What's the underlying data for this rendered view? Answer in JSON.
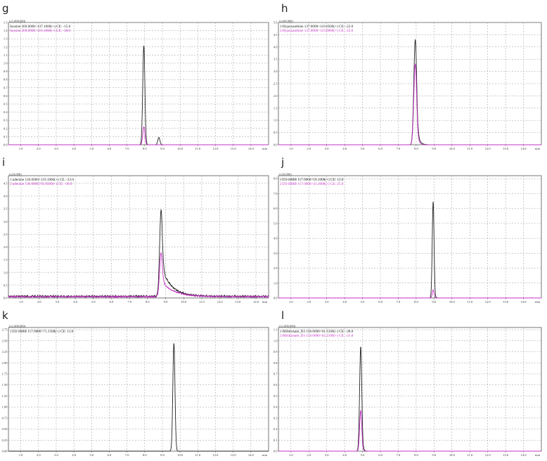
{
  "chart_data": [
    {
      "panel": "g",
      "type": "line",
      "multiplier": "(x1,000,000)",
      "legend": [
        {
          "label": "Inosine 269.0000>137.1000(+) CE: -15.0",
          "color": "#222222"
        },
        {
          "label": "Inosine 269.0000>110.1000(+) CE: -38.0",
          "color": "#c530c5"
        }
      ],
      "yticks": [
        "0.0",
        "0.1",
        "0.2",
        "0.3",
        "0.4",
        "0.5",
        "0.6",
        "0.7",
        "0.8",
        "0.9",
        "1.0",
        "1.1",
        "1.2",
        "1.3",
        "1.4",
        "1.5"
      ],
      "ylim": [
        0,
        1.5
      ],
      "xticks": [
        "1.0",
        "2.0",
        "3.0",
        "4.0",
        "5.0",
        "6.0",
        "7.0",
        "8.0",
        "9.0",
        "10.0",
        "11.0",
        "12.0",
        "13.0",
        "14.0"
      ],
      "xlim": [
        0.3,
        15.0
      ],
      "xunit": "min",
      "series": [
        {
          "color": "#222222",
          "peaks": [
            {
              "rt": 7.95,
              "h": 1.22,
              "w": 0.06,
              "tail": 0.02
            },
            {
              "rt": 8.8,
              "h": 0.09,
              "w": 0.06,
              "tail": 0.02
            }
          ]
        },
        {
          "color": "#c530c5",
          "peaks": [
            {
              "rt": 7.95,
              "h": 0.22,
              "w": 0.06,
              "tail": 0.02
            }
          ]
        }
      ]
    },
    {
      "panel": "h",
      "type": "line",
      "multiplier": "(x100,000)",
      "legend": [
        {
          "label": "1:Hypoxanthine 137.0000>110.0500(+) CE: -22.0",
          "color": "#222222"
        },
        {
          "label": "2:Hypoxanthine 137.0000>119.0000(+) CE: -22.0",
          "color": "#c530c5"
        }
      ],
      "yticks": [
        "0.0",
        "0.5",
        "1.0",
        "1.5",
        "2.0",
        "2.5",
        "3.0",
        "3.5",
        "4.0",
        "4.5",
        "5.0"
      ],
      "ylim": [
        0,
        5.0
      ],
      "xticks": [
        "1.0",
        "2.0",
        "3.0",
        "4.0",
        "5.0",
        "6.0",
        "7.0",
        "8.0",
        "9.0",
        "10.0",
        "11.0",
        "12.0",
        "13.0",
        "14.0"
      ],
      "xlim": [
        0.3,
        15.0
      ],
      "xunit": "min",
      "series": [
        {
          "color": "#222222",
          "peaks": [
            {
              "rt": 7.95,
              "h": 4.3,
              "w": 0.08,
              "tail": 0.12
            }
          ]
        },
        {
          "color": "#c530c5",
          "peaks": [
            {
              "rt": 7.95,
              "h": 3.3,
              "w": 0.08,
              "tail": 0.1
            }
          ]
        }
      ]
    },
    {
      "panel": "i",
      "type": "line",
      "multiplier": "(x10,000)",
      "legend": [
        {
          "label": "1:adenine 136.0000>119.1000(+) CE: -23.0",
          "color": "#222222"
        },
        {
          "label": "2:adenine 136.0000>92.0500(+) CE: -30.0",
          "color": "#c530c5"
        }
      ],
      "yticks": [
        "0.0",
        "0.5",
        "1.0",
        "1.5",
        "2.0",
        "2.5",
        "3.0",
        "3.5",
        "4.0",
        "4.5"
      ],
      "ylim": [
        0,
        4.8
      ],
      "xticks": [
        "1.0",
        "2.0",
        "3.0",
        "4.0",
        "5.0",
        "6.0",
        "7.0",
        "8.0",
        "9.0",
        "10.0",
        "11.0",
        "12.0",
        "13.0",
        "14.0"
      ],
      "xlim": [
        0.3,
        14.7
      ],
      "xunit": "min",
      "series": [
        {
          "color": "#222222",
          "noise": 0.09,
          "peaks": [
            {
              "rt": 8.75,
              "h": 3.4,
              "w": 0.08,
              "tail": 0.55
            }
          ]
        },
        {
          "color": "#c530c5",
          "noise": 0.07,
          "peaks": [
            {
              "rt": 8.75,
              "h": 1.75,
              "w": 0.08,
              "tail": 0.7
            }
          ]
        }
      ]
    },
    {
      "panel": "j",
      "type": "line",
      "multiplier": "(x10,000)",
      "legend": [
        {
          "label": "1:D3-HMB 117.0000>59.1000(+) CE: 12.0",
          "color": "#222222"
        },
        {
          "label": "2:D3-HMB 117.0000>41.2000(+) CE: 25.0",
          "color": "#c530c5"
        }
      ],
      "yticks": [
        "0.0",
        "1.0",
        "2.0",
        "3.0",
        "4.0",
        "5.0",
        "6.0",
        "7.0",
        "8.0"
      ],
      "ylim": [
        0,
        8.2
      ],
      "xticks": [
        "1.0",
        "2.0",
        "3.0",
        "4.0",
        "5.0",
        "6.0",
        "7.0",
        "8.0",
        "9.0",
        "10.0",
        "11.0",
        "12.0",
        "13.0",
        "14.0"
      ],
      "xlim": [
        0.3,
        15.0
      ],
      "xunit": "min",
      "series": [
        {
          "color": "#222222",
          "peaks": [
            {
              "rt": 8.95,
              "h": 6.5,
              "w": 0.05,
              "tail": 0.04
            }
          ]
        },
        {
          "color": "#c530c5",
          "peaks": [
            {
              "rt": 8.95,
              "h": 0.55,
              "w": 0.05,
              "tail": 0.04
            }
          ]
        }
      ]
    },
    {
      "panel": "k",
      "type": "line",
      "multiplier": "(x1,000,000)",
      "legend": [
        {
          "label": "1:D2-HMB 117.0000>71.1500(+) CE: 13.0",
          "color": "#222222"
        }
      ],
      "yticks": [
        "0.00",
        "0.25",
        "0.50",
        "0.75",
        "1.00",
        "1.25",
        "1.50",
        "1.75",
        "2.00",
        "2.25",
        "2.50",
        "2.75"
      ],
      "ylim": [
        0,
        2.8
      ],
      "xticks": [
        "1.0",
        "2.0",
        "3.0",
        "4.0",
        "5.0",
        "6.0",
        "7.0",
        "8.0",
        "9.0",
        "10.0",
        "11.0",
        "12.0",
        "13.0",
        "14.0"
      ],
      "xlim": [
        0.3,
        15.0
      ],
      "xunit": "min",
      "series": [
        {
          "color": "#222222",
          "peaks": [
            {
              "rt": 9.65,
              "h": 2.45,
              "w": 0.06,
              "tail": 0.03
            }
          ]
        }
      ]
    },
    {
      "panel": "l",
      "type": "line",
      "multiplier": "(x1,000,000)",
      "legend": [
        {
          "label": "1:Mildronate_D3 150.0000>61.1500(+) CE: -28.0",
          "color": "#222222"
        },
        {
          "label": "2:Mildronate_D3 150.0000>62.1500(+) CE: -21.0",
          "color": "#c530c5"
        }
      ],
      "yticks": [
        "0.0",
        "0.1",
        "0.2",
        "0.3",
        "0.4",
        "0.5",
        "0.6",
        "0.7",
        "0.8",
        "0.9",
        "1.0",
        "1.1"
      ],
      "ylim": [
        0,
        1.12
      ],
      "xticks": [
        "1.0",
        "2.0",
        "3.0",
        "4.0",
        "5.0",
        "6.0",
        "7.0",
        "8.0",
        "9.0",
        "10.0",
        "11.0",
        "12.0",
        "13.0",
        "14.0"
      ],
      "xlim": [
        0.3,
        15.0
      ],
      "xunit": "min",
      "series": [
        {
          "color": "#222222",
          "peaks": [
            {
              "rt": 4.9,
              "h": 0.95,
              "w": 0.06,
              "tail": 0.06
            }
          ]
        },
        {
          "color": "#c530c5",
          "peaks": [
            {
              "rt": 4.9,
              "h": 0.37,
              "w": 0.06,
              "tail": 0.06
            }
          ]
        }
      ]
    }
  ]
}
